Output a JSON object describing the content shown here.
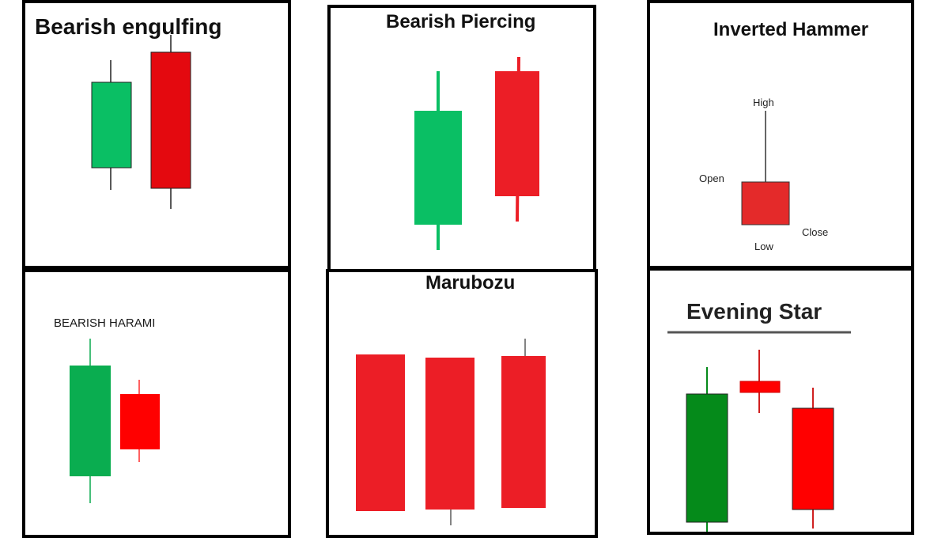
{
  "panels": [
    {
      "title": "Bearish engulfing",
      "candles": [
        {
          "color": "green",
          "wick_top": 72,
          "body_top": 100,
          "body_bottom": 208,
          "wick_bottom": 236
        },
        {
          "color": "red",
          "wick_top": 40,
          "body_top": 62,
          "body_bottom": 234,
          "wick_bottom": 260
        }
      ]
    },
    {
      "title": "Bearish Piercing",
      "candles": [
        {
          "color": "green",
          "wick_top": 80,
          "body_top": 130,
          "body_bottom": 274,
          "wick_bottom": 306
        },
        {
          "color": "red",
          "wick_top": 62,
          "body_top": 80,
          "body_bottom": 238,
          "wick_bottom": 270
        }
      ]
    },
    {
      "title": "Inverted Hammer",
      "labels": {
        "high": "High",
        "open": "Open",
        "close": "Close",
        "low": "Low"
      }
    },
    {
      "title": "BEARISH HARAMI",
      "candles": [
        {
          "color": "green",
          "wick_top": 84,
          "body_top": 118,
          "body_bottom": 258,
          "wick_bottom": 292
        },
        {
          "color": "red",
          "wick_top": 136,
          "body_top": 154,
          "body_bottom": 224,
          "wick_bottom": 240
        }
      ]
    },
    {
      "title": "Marubozu",
      "candles": [
        {
          "color": "red",
          "body_top": 104,
          "body_bottom": 302
        },
        {
          "color": "red",
          "body_top": 108,
          "body_bottom": 300
        },
        {
          "color": "red",
          "body_top": 106,
          "body_bottom": 298
        }
      ]
    },
    {
      "title": "Evening Star",
      "candles": [
        {
          "color": "green",
          "wick_top": 122,
          "body_top": 156,
          "body_bottom": 318,
          "wick_bottom": 340
        },
        {
          "color": "red",
          "wick_top": 100,
          "body_top": 140,
          "body_bottom": 154,
          "wick_bottom": 180
        },
        {
          "color": "red",
          "wick_top": 148,
          "body_top": 174,
          "body_bottom": 302,
          "wick_bottom": 326
        }
      ]
    }
  ],
  "colors": {
    "green": "#0abf64",
    "dark_green": "#058a1a",
    "red": "#ec1e26",
    "bright_red": "#ff0000",
    "border": "#000000"
  }
}
